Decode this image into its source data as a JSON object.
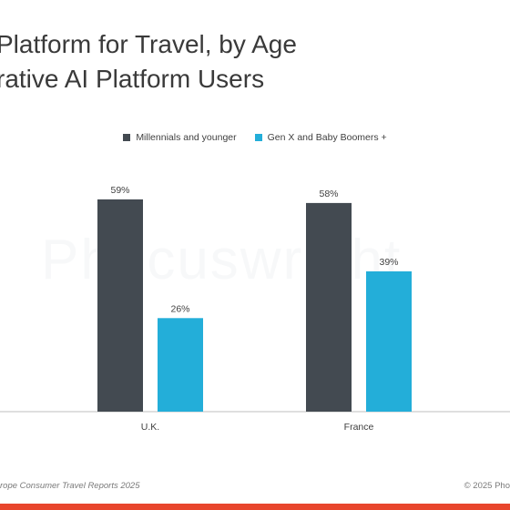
{
  "title_lines": [
    "Platform for Travel, by Age",
    "rative AI Platform Users"
  ],
  "watermark": "Phocuswright",
  "footer": {
    "left": "rope Consumer Travel Reports 2025",
    "right": "© 2025 Pho"
  },
  "colors": {
    "series1": "#434a51",
    "series2": "#23aed9",
    "accent_bar": "#e8452c",
    "axis": "#bfbfbf"
  },
  "chart_data": {
    "type": "bar",
    "categories": [
      "U.K.",
      "France"
    ],
    "series": [
      {
        "name": "Millennials and younger",
        "values": [
          59,
          58
        ],
        "labels": [
          "59%",
          "58%"
        ]
      },
      {
        "name": "Gen X and Baby Boomers +",
        "values": [
          26,
          39
        ],
        "labels": [
          "26%",
          "39%"
        ]
      }
    ],
    "ylim": [
      0,
      70
    ],
    "legend_position": "top-center",
    "grid": false
  }
}
